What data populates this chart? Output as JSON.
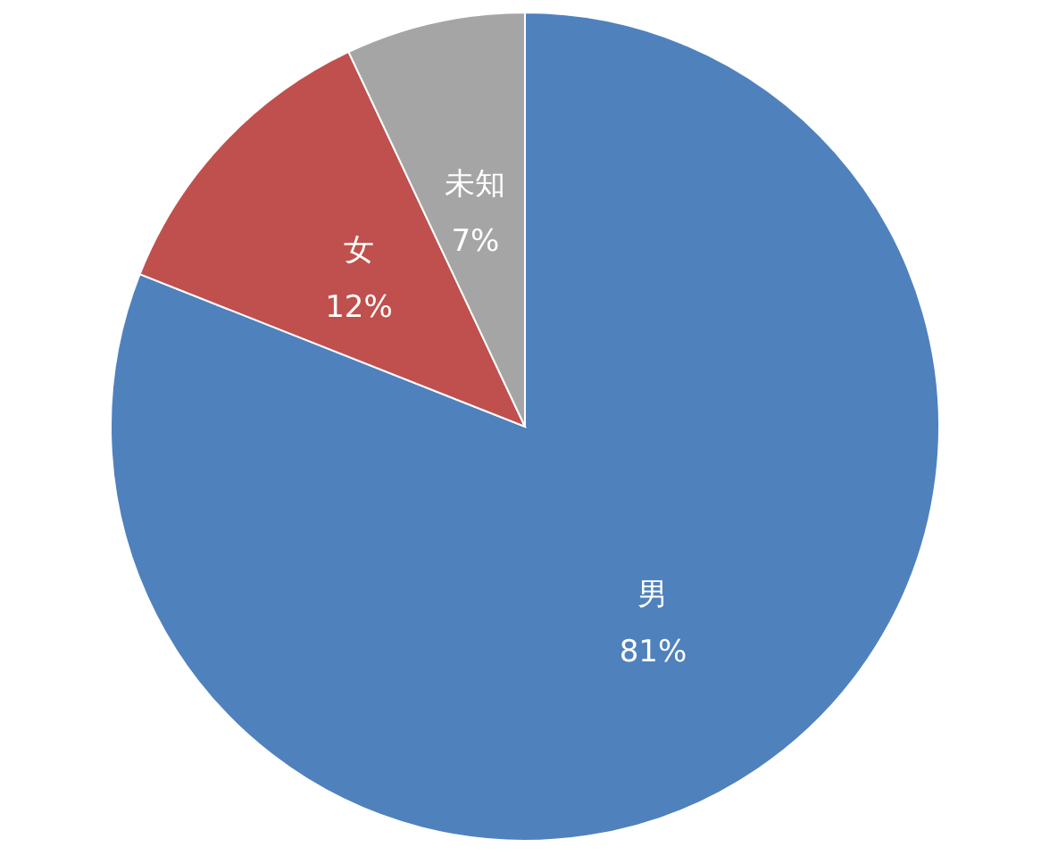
{
  "chart_data": {
    "type": "pie",
    "categories": [
      "男",
      "女",
      "未知"
    ],
    "values": [
      81,
      12,
      7
    ],
    "colors": [
      "#4f81bd",
      "#c0504d",
      "#a5a5a5"
    ],
    "value_labels": [
      "81%",
      "12%",
      "7%"
    ]
  }
}
